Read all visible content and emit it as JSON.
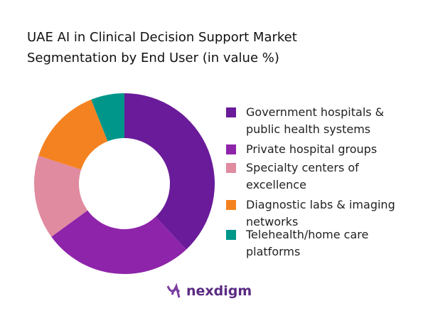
{
  "chart_data": {
    "type": "donut",
    "title": "UAE AI in Clinical Decision Support Market Segmentation by End User (in value %)",
    "categories": [
      "Government hospitals & public health systems",
      "Private hospital groups",
      "Specialty centers of excellence",
      "Diagnostic labs & imaging networks",
      "Telehealth/home care platforms"
    ],
    "values": [
      38,
      27,
      15,
      14,
      6
    ],
    "colors": [
      "#6a1b9a",
      "#8e24aa",
      "#e08ba0",
      "#f58220",
      "#00968a"
    ]
  },
  "brand": "nexdigm"
}
